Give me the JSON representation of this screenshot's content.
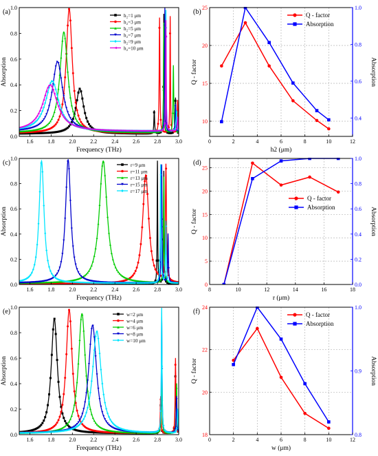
{
  "chart_data": [
    {
      "id": "a",
      "type": "line",
      "panel_label": "(a)",
      "xlabel": "Frequency (THz)",
      "ylabel": "Absorption",
      "xlim": [
        1.5,
        3.0
      ],
      "ylim": [
        0,
        1.0
      ],
      "xticks": [
        1.6,
        1.8,
        2.0,
        2.2,
        2.4,
        2.6,
        2.8,
        3.0
      ],
      "yticks": [
        0.0,
        0.2,
        0.4,
        0.6,
        0.8,
        1.0
      ],
      "legend_position": "top-right",
      "grid": false,
      "series": [
        {
          "name": "h₂=1 μm",
          "color": "#000000",
          "marker": "square",
          "peaks": [
            [
              2.07,
              0.37,
              0.045
            ],
            [
              2.77,
              0.2,
              0.004
            ],
            [
              2.86,
              0.95,
              0.003
            ],
            [
              2.97,
              0.3,
              0.004
            ]
          ],
          "baseline": 0.02
        },
        {
          "name": "h₂=3 μm",
          "color": "#ff0000",
          "marker": "circle",
          "peaks": [
            [
              1.97,
              0.99,
              0.035
            ],
            [
              2.82,
              0.92,
              0.004
            ],
            [
              2.92,
              0.93,
              0.003
            ],
            [
              2.99,
              0.28,
              0.004
            ]
          ],
          "baseline": 0.025
        },
        {
          "name": "h₂=5 μm",
          "color": "#00cc00",
          "marker": "triangle-up",
          "peaks": [
            [
              1.92,
              0.81,
              0.045
            ],
            [
              2.86,
              0.88,
              0.003
            ],
            [
              2.95,
              0.55,
              0.004
            ]
          ],
          "baseline": 0.03
        },
        {
          "name": "h₂=7 μm",
          "color": "#0000cc",
          "marker": "triangle-down",
          "peaks": [
            [
              1.86,
              0.58,
              0.06
            ],
            [
              2.87,
              1.0,
              0.003
            ],
            [
              2.97,
              0.25,
              0.004
            ]
          ],
          "baseline": 0.035
        },
        {
          "name": "h₂=9 μm",
          "color": "#00e5ff",
          "marker": "diamond",
          "peaks": [
            [
              1.81,
              0.43,
              0.075
            ],
            [
              2.88,
              0.98,
              0.003
            ],
            [
              2.98,
              0.2,
              0.004
            ]
          ],
          "baseline": 0.04
        },
        {
          "name": "h₂=10 μm",
          "color": "#e000e0",
          "marker": "triangle-left",
          "peaks": [
            [
              1.79,
              0.4,
              0.085
            ],
            [
              2.88,
              0.9,
              0.003
            ],
            [
              2.99,
              0.15,
              0.004
            ]
          ],
          "baseline": 0.04
        }
      ]
    },
    {
      "id": "b",
      "type": "line",
      "panel_label": "(b)",
      "xlabel": "h2 (μm)",
      "ylabel": "Q - factor",
      "ylabel_right": "Absorption",
      "xlim": [
        0,
        12
      ],
      "ylim": [
        8,
        25
      ],
      "ylim_right": [
        0.3,
        1.0
      ],
      "xticks": [
        0,
        2,
        4,
        6,
        8,
        10,
        12
      ],
      "yticks": [
        10,
        15,
        20,
        25
      ],
      "yticks_right": [
        0.4,
        0.6,
        0.8,
        1.0
      ],
      "legend_position": "top-right",
      "grid": true,
      "x": [
        1,
        3,
        5,
        7,
        9,
        10
      ],
      "series": [
        {
          "name": "Q - factor",
          "color": "#ff0000",
          "marker": "circle",
          "axis": "left",
          "values": [
            17.3,
            23.0,
            17.3,
            12.7,
            10.1,
            9.0
          ]
        },
        {
          "name": "Absorption",
          "color": "#0000ff",
          "marker": "square",
          "axis": "right",
          "values": [
            0.38,
            1.0,
            0.81,
            0.59,
            0.44,
            0.39
          ]
        }
      ]
    },
    {
      "id": "c",
      "type": "line",
      "panel_label": "(c)",
      "xlabel": "Frequency (THz)",
      "ylabel": "Absorption",
      "xlim": [
        1.5,
        3.0
      ],
      "ylim": [
        0,
        1.0
      ],
      "xticks": [
        1.6,
        1.8,
        2.0,
        2.2,
        2.4,
        2.6,
        2.8,
        3.0
      ],
      "yticks": [
        0.0,
        0.2,
        0.4,
        0.6,
        0.8,
        1.0
      ],
      "legend_position": "top-right",
      "grid": false,
      "series": [
        {
          "name": "r=9 μm",
          "color": "#000000",
          "marker": "square",
          "peaks": [
            [
              2.8,
              0.98,
              0.003
            ],
            [
              2.86,
              0.9,
              0.003
            ]
          ],
          "baseline": 0.005
        },
        {
          "name": "r=11 μm",
          "color": "#ff0000",
          "marker": "circle",
          "peaks": [
            [
              2.69,
              0.87,
              0.035
            ],
            [
              2.88,
              0.93,
              0.006
            ]
          ],
          "baseline": 0.005
        },
        {
          "name": "r=13 μm",
          "color": "#00cc00",
          "marker": "triangle-up",
          "peaks": [
            [
              2.29,
              0.98,
              0.045
            ],
            [
              2.86,
              0.85,
              0.004
            ]
          ],
          "baseline": 0.01
        },
        {
          "name": "r=15 μm",
          "color": "#0000cc",
          "marker": "triangle-down",
          "peaks": [
            [
              1.96,
              0.99,
              0.03
            ],
            [
              2.84,
              0.95,
              0.004
            ],
            [
              2.9,
              0.4,
              0.004
            ]
          ],
          "baseline": 0.01
        },
        {
          "name": "r=17 μm",
          "color": "#00e5ff",
          "marker": "diamond",
          "peaks": [
            [
              1.71,
              0.98,
              0.028
            ],
            [
              2.83,
              0.95,
              0.004
            ],
            [
              2.88,
              0.5,
              0.004
            ]
          ],
          "baseline": 0.01
        }
      ]
    },
    {
      "id": "d",
      "type": "line",
      "panel_label": "(d)",
      "xlabel": "r (μm)",
      "ylabel": "Q - factor",
      "ylabel_right": "Absorption",
      "xlim": [
        8,
        18
      ],
      "ylim": [
        0,
        27
      ],
      "ylim_right": [
        0,
        1.0
      ],
      "xticks": [
        8,
        10,
        12,
        14,
        16,
        18
      ],
      "yticks": [
        0,
        5,
        10,
        15,
        20,
        25
      ],
      "yticks_right": [
        0.0,
        0.2,
        0.4,
        0.6,
        0.8,
        1.0
      ],
      "legend_position": "center-right",
      "grid": true,
      "x": [
        9,
        11,
        13,
        15,
        17
      ],
      "series": [
        {
          "name": "Q - factor",
          "color": "#ff0000",
          "marker": "circle",
          "axis": "left",
          "values": [
            0,
            26.0,
            21.3,
            23.0,
            19.8
          ]
        },
        {
          "name": "Absorption",
          "color": "#0000ff",
          "marker": "square",
          "axis": "right",
          "values": [
            0,
            0.84,
            0.98,
            1.0,
            1.0
          ]
        }
      ]
    },
    {
      "id": "e",
      "type": "line",
      "panel_label": "(e)",
      "xlabel": "Frequency (THz)",
      "ylabel": "Absorption",
      "xlim": [
        1.5,
        3.0
      ],
      "ylim": [
        0,
        1.0
      ],
      "xticks": [
        1.6,
        1.8,
        2.0,
        2.2,
        2.4,
        2.6,
        2.8,
        3.0
      ],
      "yticks": [
        0.0,
        0.2,
        0.4,
        0.6,
        0.8,
        1.0
      ],
      "legend_position": "top-right",
      "grid": false,
      "series": [
        {
          "name": "w=2 μm",
          "color": "#000000",
          "marker": "square",
          "peaks": [
            [
              1.83,
              0.91,
              0.035
            ],
            [
              2.83,
              0.25,
              0.004
            ],
            [
              2.97,
              0.5,
              0.004
            ]
          ],
          "baseline": 0.01
        },
        {
          "name": "w=4 μm",
          "color": "#ff0000",
          "marker": "circle",
          "peaks": [
            [
              1.97,
              0.98,
              0.035
            ],
            [
              2.83,
              0.3,
              0.004
            ],
            [
              2.97,
              0.6,
              0.004
            ]
          ],
          "baseline": 0.01
        },
        {
          "name": "w=6 μm",
          "color": "#00cc00",
          "marker": "triangle-up",
          "peaks": [
            [
              2.09,
              0.95,
              0.04
            ],
            [
              2.84,
              0.5,
              0.004
            ],
            [
              2.98,
              0.4,
              0.004
            ]
          ],
          "baseline": 0.01
        },
        {
          "name": "w=8 μm",
          "color": "#0000cc",
          "marker": "triangle-down",
          "peaks": [
            [
              2.19,
              0.86,
              0.045
            ],
            [
              2.84,
              0.95,
              0.004
            ],
            [
              2.98,
              0.3,
              0.004
            ]
          ],
          "baseline": 0.01
        },
        {
          "name": "w=10 μm",
          "color": "#00e5ff",
          "marker": "diamond",
          "peaks": [
            [
              2.23,
              0.81,
              0.05
            ],
            [
              2.84,
              0.99,
              0.004
            ],
            [
              2.99,
              0.2,
              0.004
            ]
          ],
          "baseline": 0.01
        }
      ]
    },
    {
      "id": "f",
      "type": "line",
      "panel_label": "(f)",
      "xlabel": "w (μm)",
      "ylabel": "Q - factor",
      "ylabel_right": "Absorption",
      "xlim": [
        0,
        12
      ],
      "ylim": [
        18,
        24
      ],
      "ylim_right": [
        0.8,
        1.0
      ],
      "xticks": [
        0,
        2,
        4,
        6,
        8,
        10,
        12
      ],
      "yticks": [
        18,
        20,
        22,
        24
      ],
      "yticks_right": [
        0.8,
        0.9,
        1.0
      ],
      "legend_position": "top-right",
      "grid": true,
      "x": [
        2,
        4,
        6,
        8,
        10
      ],
      "series": [
        {
          "name": "Q - factor",
          "color": "#ff0000",
          "marker": "circle",
          "axis": "left",
          "values": [
            21.5,
            23.0,
            20.7,
            19.0,
            18.3
          ]
        },
        {
          "name": "Absorption",
          "color": "#0000ff",
          "marker": "square",
          "axis": "right",
          "values": [
            0.91,
            1.0,
            0.95,
            0.88,
            0.82
          ]
        }
      ]
    }
  ]
}
